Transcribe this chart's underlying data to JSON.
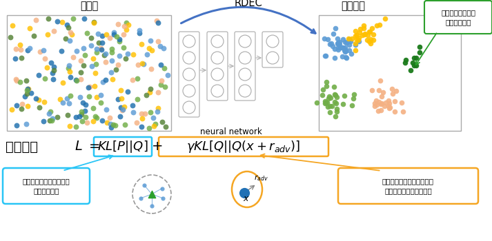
{
  "bg_color": "#ffffff",
  "title_real": "実空間",
  "title_latent": "潜在空間",
  "title_rdec": "RDEC",
  "nn_label": "neural network",
  "loss_label_jp": "ロス関数",
  "comment1": "クラスタ中心にデータを\n凝縮する効果",
  "comment2": "実空間で類似したデータを\n近傍に射影する正則化項",
  "comment3": "少量のクラスタも\n高精度に分類",
  "cyan_color": "#29c5f6",
  "yellow_color": "#f5a623",
  "green_color": "#2ca02c",
  "arrow_color": "#4472c4"
}
